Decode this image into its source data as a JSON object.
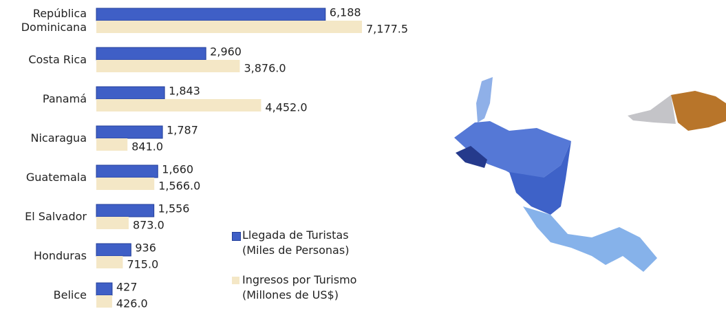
{
  "chart_data": {
    "type": "bar",
    "orientation": "horizontal",
    "categories": [
      "República Dominicana",
      "Costa Rica",
      "Panamá",
      "Nicaragua",
      "Guatemala",
      "El Salvador",
      "Honduras",
      "Belice"
    ],
    "series": [
      {
        "name": "Llegada de Turistas (Miles de Personas)",
        "color": "#3f5fc6",
        "values": [
          6188,
          2960,
          1843,
          1787,
          1660,
          1556,
          936,
          427
        ],
        "value_labels": [
          "6,188",
          "2,960",
          "1,843",
          "1,787",
          "1,660",
          "1,556",
          "936",
          "427"
        ]
      },
      {
        "name": "Ingresos por Turismo (Millones de US$)",
        "color": "#f4e7c6",
        "values": [
          7177.5,
          3876.0,
          4452.0,
          841.0,
          1566.0,
          873.0,
          715.0,
          426.0
        ],
        "value_labels": [
          "7,177.5",
          "3,876.0",
          "4,452.0",
          "841.0",
          "1,566.0",
          "873.0",
          "715.0",
          "426.0"
        ]
      }
    ]
  }
}
